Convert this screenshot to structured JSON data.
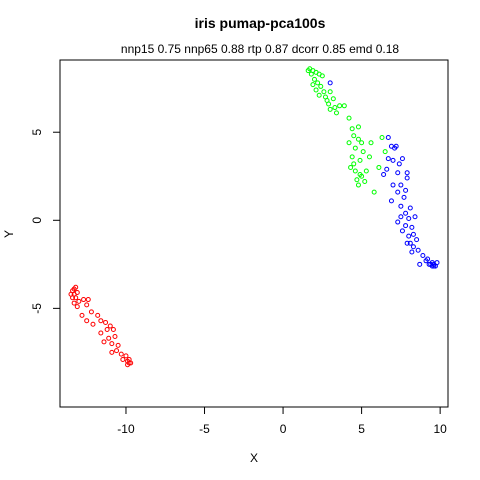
{
  "chart_data": {
    "type": "scatter",
    "title": "iris pumap-pca100s",
    "subtitle": "nnp15 0.75 nnp65 0.88 rtp 0.87 dcorr 0.85 emd 0.18",
    "xlabel": "X",
    "ylabel": "Y",
    "xlim": [
      -14.2,
      10.5
    ],
    "ylim": [
      -10.6,
      9.1
    ],
    "xticks": [
      -10,
      -5,
      0,
      5,
      10
    ],
    "yticks": [
      -5,
      0,
      5
    ],
    "grid": false,
    "marker": "open-circle",
    "series": [
      {
        "color": "#ff0000",
        "points": [
          [
            -13.3,
            -3.9
          ],
          [
            -13.2,
            -3.8
          ],
          [
            -13.4,
            -4.0
          ],
          [
            -13.1,
            -4.1
          ],
          [
            -13.3,
            -4.2
          ],
          [
            -13.5,
            -4.2
          ],
          [
            -13.2,
            -4.4
          ],
          [
            -13.4,
            -4.4
          ],
          [
            -13.0,
            -4.6
          ],
          [
            -13.3,
            -4.7
          ],
          [
            -13.1,
            -4.9
          ],
          [
            -12.7,
            -4.5
          ],
          [
            -12.4,
            -4.5
          ],
          [
            -12.5,
            -4.8
          ],
          [
            -12.2,
            -5.2
          ],
          [
            -12.8,
            -5.4
          ],
          [
            -12.5,
            -5.7
          ],
          [
            -12.1,
            -5.9
          ],
          [
            -11.8,
            -5.4
          ],
          [
            -11.6,
            -5.7
          ],
          [
            -11.3,
            -5.8
          ],
          [
            -11.0,
            -6.0
          ],
          [
            -10.8,
            -6.2
          ],
          [
            -11.2,
            -6.2
          ],
          [
            -11.6,
            -6.4
          ],
          [
            -10.7,
            -6.6
          ],
          [
            -11.1,
            -6.7
          ],
          [
            -11.4,
            -6.9
          ],
          [
            -10.9,
            -7.0
          ],
          [
            -10.5,
            -7.1
          ],
          [
            -10.6,
            -7.4
          ],
          [
            -10.9,
            -7.5
          ],
          [
            -10.3,
            -7.6
          ],
          [
            -10.0,
            -7.7
          ],
          [
            -10.2,
            -7.9
          ],
          [
            -9.9,
            -8.0
          ],
          [
            -9.8,
            -8.1
          ],
          [
            -9.7,
            -8.1
          ],
          [
            -9.9,
            -8.2
          ],
          [
            -9.8,
            -7.9
          ]
        ]
      },
      {
        "color": "#00ff00",
        "points": [
          [
            1.6,
            8.5
          ],
          [
            1.7,
            8.6
          ],
          [
            1.9,
            8.5
          ],
          [
            2.1,
            8.4
          ],
          [
            1.8,
            8.3
          ],
          [
            2.3,
            8.3
          ],
          [
            2.5,
            8.2
          ],
          [
            2.0,
            8.0
          ],
          [
            2.2,
            7.8
          ],
          [
            1.9,
            7.7
          ],
          [
            2.4,
            7.6
          ],
          [
            2.1,
            7.4
          ],
          [
            2.6,
            7.3
          ],
          [
            2.3,
            7.1
          ],
          [
            2.7,
            7.0
          ],
          [
            3.0,
            7.3
          ],
          [
            2.8,
            6.8
          ],
          [
            3.2,
            6.9
          ],
          [
            2.9,
            6.6
          ],
          [
            3.3,
            6.4
          ],
          [
            3.0,
            6.3
          ],
          [
            3.6,
            6.5
          ],
          [
            3.9,
            6.5
          ],
          [
            3.4,
            6.1
          ],
          [
            4.2,
            5.8
          ],
          [
            4.4,
            5.2
          ],
          [
            4.8,
            5.3
          ],
          [
            4.5,
            4.8
          ],
          [
            4.8,
            4.6
          ],
          [
            4.2,
            4.4
          ],
          [
            5.0,
            4.4
          ],
          [
            4.6,
            4.1
          ],
          [
            5.1,
            3.9
          ],
          [
            4.4,
            3.6
          ],
          [
            4.9,
            3.4
          ],
          [
            4.5,
            3.2
          ],
          [
            4.3,
            3.0
          ],
          [
            4.6,
            2.8
          ],
          [
            4.9,
            2.6
          ],
          [
            5.3,
            2.8
          ],
          [
            5.0,
            2.5
          ],
          [
            4.7,
            2.3
          ],
          [
            5.2,
            2.2
          ],
          [
            4.8,
            2.0
          ],
          [
            5.5,
            3.6
          ],
          [
            5.6,
            4.4
          ],
          [
            6.3,
            4.7
          ],
          [
            6.5,
            3.9
          ],
          [
            6.1,
            3.0
          ],
          [
            5.8,
            1.6
          ]
        ]
      },
      {
        "color": "#0000ff",
        "points": [
          [
            3.0,
            7.8
          ],
          [
            6.7,
            4.7
          ],
          [
            7.1,
            4.1
          ],
          [
            6.9,
            4.2
          ],
          [
            7.2,
            4.2
          ],
          [
            6.7,
            3.5
          ],
          [
            7.0,
            3.4
          ],
          [
            6.6,
            2.9
          ],
          [
            7.4,
            3.2
          ],
          [
            7.3,
            2.7
          ],
          [
            7.6,
            3.5
          ],
          [
            7.9,
            2.4
          ],
          [
            7.5,
            2.0
          ],
          [
            7.0,
            2.0
          ],
          [
            7.3,
            1.6
          ],
          [
            7.7,
            1.3
          ],
          [
            7.5,
            0.8
          ],
          [
            7.8,
            0.4
          ],
          [
            8.1,
            0.7
          ],
          [
            7.5,
            0.2
          ],
          [
            8.4,
            0.2
          ],
          [
            7.8,
            -0.3
          ],
          [
            8.2,
            -0.4
          ],
          [
            7.6,
            -0.6
          ],
          [
            8.3,
            -0.8
          ],
          [
            8.0,
            -0.9
          ],
          [
            8.5,
            -1.1
          ],
          [
            7.9,
            -1.3
          ],
          [
            8.3,
            -1.5
          ],
          [
            8.6,
            -1.7
          ],
          [
            8.2,
            -1.8
          ],
          [
            8.9,
            -2.0
          ],
          [
            9.1,
            -2.3
          ],
          [
            8.7,
            -2.5
          ],
          [
            9.3,
            -2.5
          ],
          [
            9.4,
            -2.5
          ],
          [
            9.5,
            -2.6
          ],
          [
            9.6,
            -2.5
          ],
          [
            9.6,
            -2.6
          ],
          [
            9.7,
            -2.6
          ],
          [
            9.5,
            -2.4
          ],
          [
            9.2,
            -2.2
          ],
          [
            8.1,
            -1.3
          ],
          [
            7.3,
            -0.1
          ],
          [
            8.0,
            0.1
          ],
          [
            7.8,
            1.7
          ],
          [
            6.9,
            1.1
          ],
          [
            6.4,
            2.6
          ],
          [
            7.9,
            2.7
          ],
          [
            9.8,
            -2.4
          ]
        ]
      }
    ]
  }
}
